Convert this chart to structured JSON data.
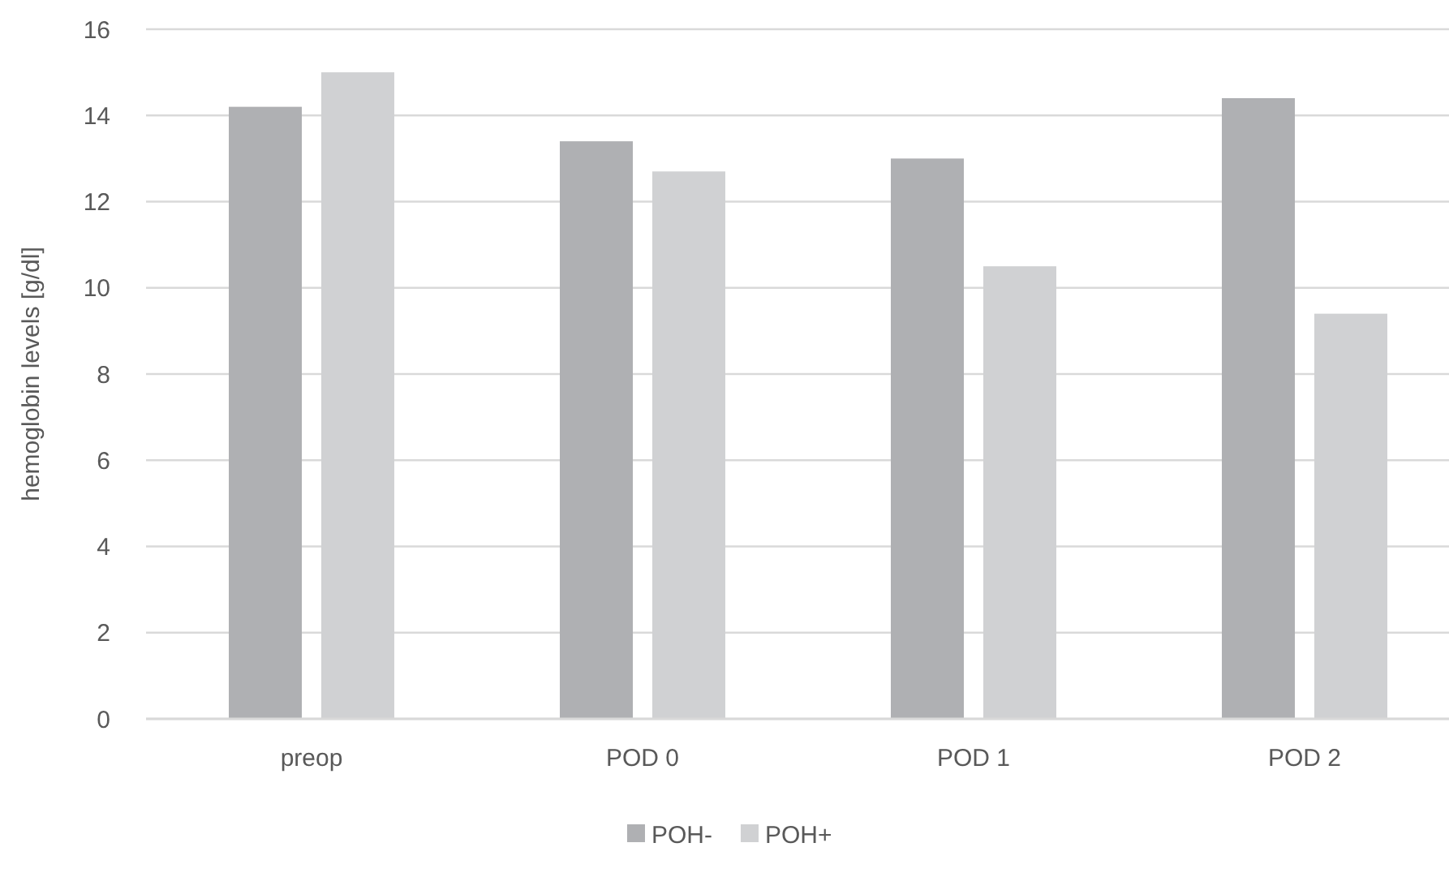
{
  "chart_data": {
    "type": "bar",
    "ylabel": "hemoglobin levels [g/dl]",
    "categories": [
      "preop",
      "POD 0",
      "POD 1",
      "POD 2"
    ],
    "series": [
      {
        "name": "POH-",
        "color": "#afb0b3",
        "values": [
          14.2,
          13.4,
          13.0,
          14.4
        ]
      },
      {
        "name": "POH+",
        "color": "#d0d1d3",
        "values": [
          15.0,
          12.7,
          10.5,
          9.4
        ]
      }
    ],
    "ylim": [
      0,
      16
    ],
    "yticks": [
      0,
      2,
      4,
      6,
      8,
      10,
      12,
      14,
      16
    ],
    "grid": "y",
    "legend": "bottom"
  }
}
